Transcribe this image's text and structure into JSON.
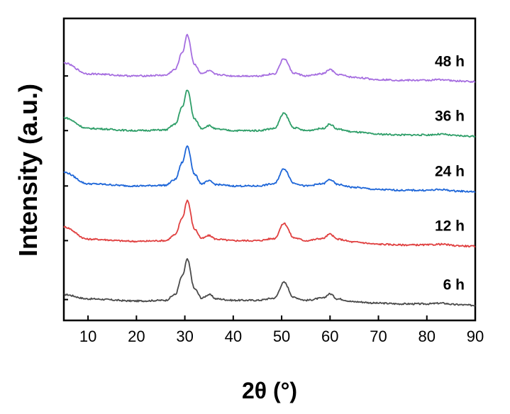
{
  "chart_data": {
    "type": "line",
    "xlabel": "2θ (°)",
    "ylabel": "Intensity (a.u.)",
    "xlim": [
      5,
      90
    ],
    "xticks": [
      10,
      20,
      30,
      40,
      50,
      60,
      70,
      80,
      90
    ],
    "y_ticks_labeled": false,
    "grid": false,
    "legend": "none",
    "series": [
      {
        "name": "6 h",
        "color": "#4a4a4a",
        "x": [
          5,
          10,
          20,
          26,
          28,
          29.5,
          30.5,
          32,
          33.5,
          35,
          36.5,
          40,
          45,
          48.5,
          50.5,
          52.5,
          55,
          58.5,
          60,
          61.5,
          65,
          70,
          75,
          80,
          83,
          86,
          90
        ],
        "y": [
          36,
          30,
          27,
          28,
          36,
          62,
          85,
          44,
          31,
          36,
          30,
          28,
          28,
          31,
          53,
          32,
          28,
          31,
          37,
          30,
          26,
          24,
          23,
          23,
          24,
          22,
          21
        ]
      },
      {
        "name": "12 h",
        "color": "#e04040",
        "x": [
          5,
          10,
          20,
          26,
          28,
          29.5,
          30.5,
          32,
          33.5,
          35,
          36.5,
          40,
          45,
          48.5,
          50.5,
          52.5,
          55,
          58.5,
          60,
          61.5,
          65,
          70,
          75,
          80,
          83,
          86,
          90
        ],
        "y": [
          130,
          113,
          110,
          111,
          119,
          143,
          167,
          127,
          114,
          118,
          113,
          111,
          111,
          114,
          135,
          115,
          111,
          114,
          120,
          113,
          109,
          106,
          105,
          105,
          106,
          104,
          103
        ]
      },
      {
        "name": "24 h",
        "color": "#1e66d8",
        "x": [
          5,
          10,
          20,
          26,
          28,
          29.5,
          30.5,
          32,
          33.5,
          35,
          36.5,
          40,
          45,
          48.5,
          50.5,
          52.5,
          55,
          58.5,
          60,
          61.5,
          65,
          70,
          75,
          80,
          83,
          86,
          90
        ],
        "y": [
          206,
          190,
          187,
          188,
          196,
          220,
          243,
          203,
          190,
          194,
          189,
          187,
          187,
          190,
          211,
          191,
          187,
          190,
          196,
          189,
          185,
          182,
          181,
          181,
          182,
          180,
          179
        ]
      },
      {
        "name": "36 h",
        "color": "#2e9e68",
        "x": [
          5,
          10,
          20,
          26,
          28,
          29.5,
          30.5,
          32,
          33.5,
          35,
          36.5,
          40,
          45,
          48.5,
          50.5,
          52.5,
          55,
          58.5,
          60,
          61.5,
          65,
          70,
          75,
          80,
          83,
          86,
          90
        ],
        "y": [
          282,
          267,
          264,
          265,
          273,
          297,
          321,
          280,
          267,
          271,
          266,
          264,
          264,
          267,
          288,
          268,
          264,
          267,
          273,
          266,
          262,
          259,
          258,
          258,
          259,
          257,
          256
        ]
      },
      {
        "name": "48 h",
        "color": "#a66ee0",
        "x": [
          5,
          10,
          20,
          26,
          28,
          29.5,
          30.5,
          32,
          33.5,
          35,
          36.5,
          40,
          45,
          48.5,
          50.5,
          52.5,
          55,
          58.5,
          60,
          61.5,
          65,
          70,
          75,
          80,
          83,
          86,
          90
        ],
        "y": [
          358,
          343,
          340,
          341,
          349,
          373,
          397,
          356,
          343,
          347,
          342,
          340,
          340,
          343,
          364,
          344,
          340,
          343,
          349,
          342,
          338,
          335,
          334,
          334,
          335,
          333,
          332
        ]
      }
    ]
  }
}
